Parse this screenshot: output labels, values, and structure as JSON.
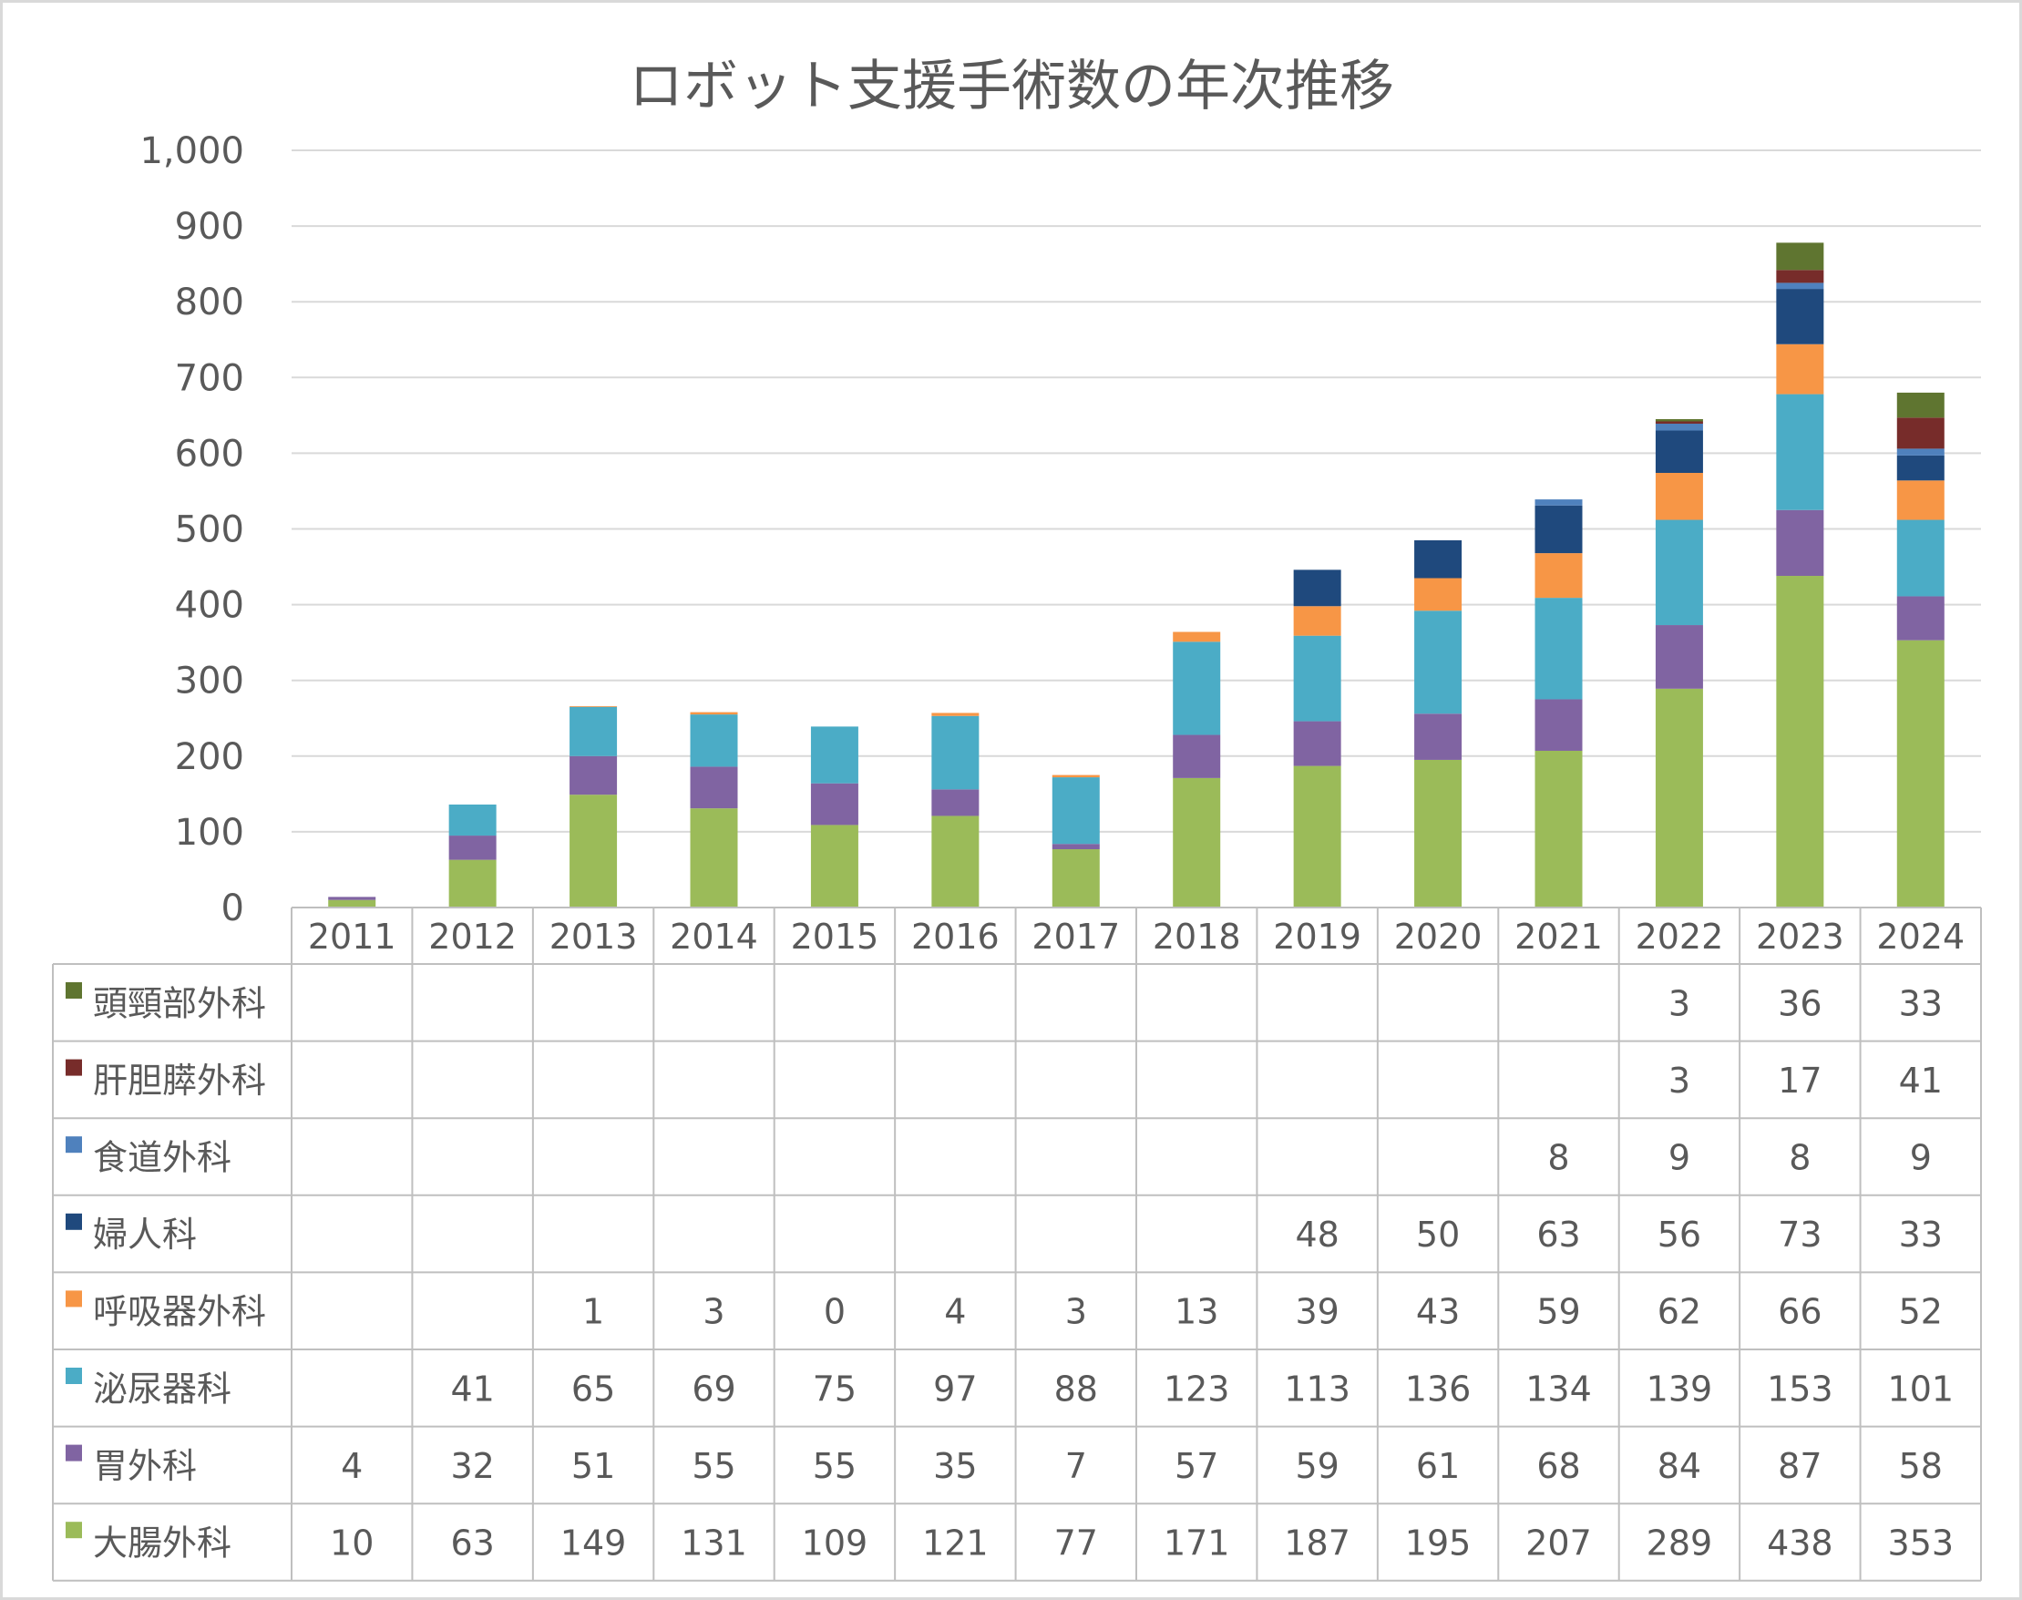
{
  "chart_data": {
    "type": "bar",
    "stacked": true,
    "title": "ロボット支援手術数の年次推移",
    "categories": [
      "2011",
      "2012",
      "2013",
      "2014",
      "2015",
      "2016",
      "2017",
      "2018",
      "2019",
      "2020",
      "2021",
      "2022",
      "2023",
      "2024"
    ],
    "ylim": [
      0,
      1000
    ],
    "yticks": [
      "0",
      "100",
      "200",
      "300",
      "400",
      "500",
      "600",
      "700",
      "800",
      "900",
      "1,000"
    ],
    "grid": true,
    "data_table": true,
    "series": [
      {
        "name": "大腸外科",
        "color": "#9bbb59",
        "values": [
          10,
          63,
          149,
          131,
          109,
          121,
          77,
          171,
          187,
          195,
          207,
          289,
          438,
          353
        ]
      },
      {
        "name": "胃外科",
        "color": "#8064a2",
        "values": [
          4,
          32,
          51,
          55,
          55,
          35,
          7,
          57,
          59,
          61,
          68,
          84,
          87,
          58
        ]
      },
      {
        "name": "泌尿器科",
        "color": "#4bacc6",
        "values": [
          null,
          41,
          65,
          69,
          75,
          97,
          88,
          123,
          113,
          136,
          134,
          139,
          153,
          101
        ]
      },
      {
        "name": "呼吸器外科",
        "color": "#f79646",
        "values": [
          null,
          null,
          1,
          3,
          0,
          4,
          3,
          13,
          39,
          43,
          59,
          62,
          66,
          52
        ]
      },
      {
        "name": "婦人科",
        "color": "#1f497d",
        "values": [
          null,
          null,
          null,
          null,
          null,
          null,
          null,
          null,
          48,
          50,
          63,
          56,
          73,
          33
        ]
      },
      {
        "name": "食道外科",
        "color": "#4f81bd",
        "values": [
          null,
          null,
          null,
          null,
          null,
          null,
          null,
          null,
          null,
          null,
          8,
          9,
          8,
          9
        ]
      },
      {
        "name": "肝胆膵外科",
        "color": "#772c2a",
        "values": [
          null,
          null,
          null,
          null,
          null,
          null,
          null,
          null,
          null,
          null,
          null,
          3,
          17,
          41
        ]
      },
      {
        "name": "頭頸部外科",
        "color": "#5f7530",
        "values": [
          null,
          null,
          null,
          null,
          null,
          null,
          null,
          null,
          null,
          null,
          null,
          3,
          36,
          33
        ]
      }
    ]
  }
}
